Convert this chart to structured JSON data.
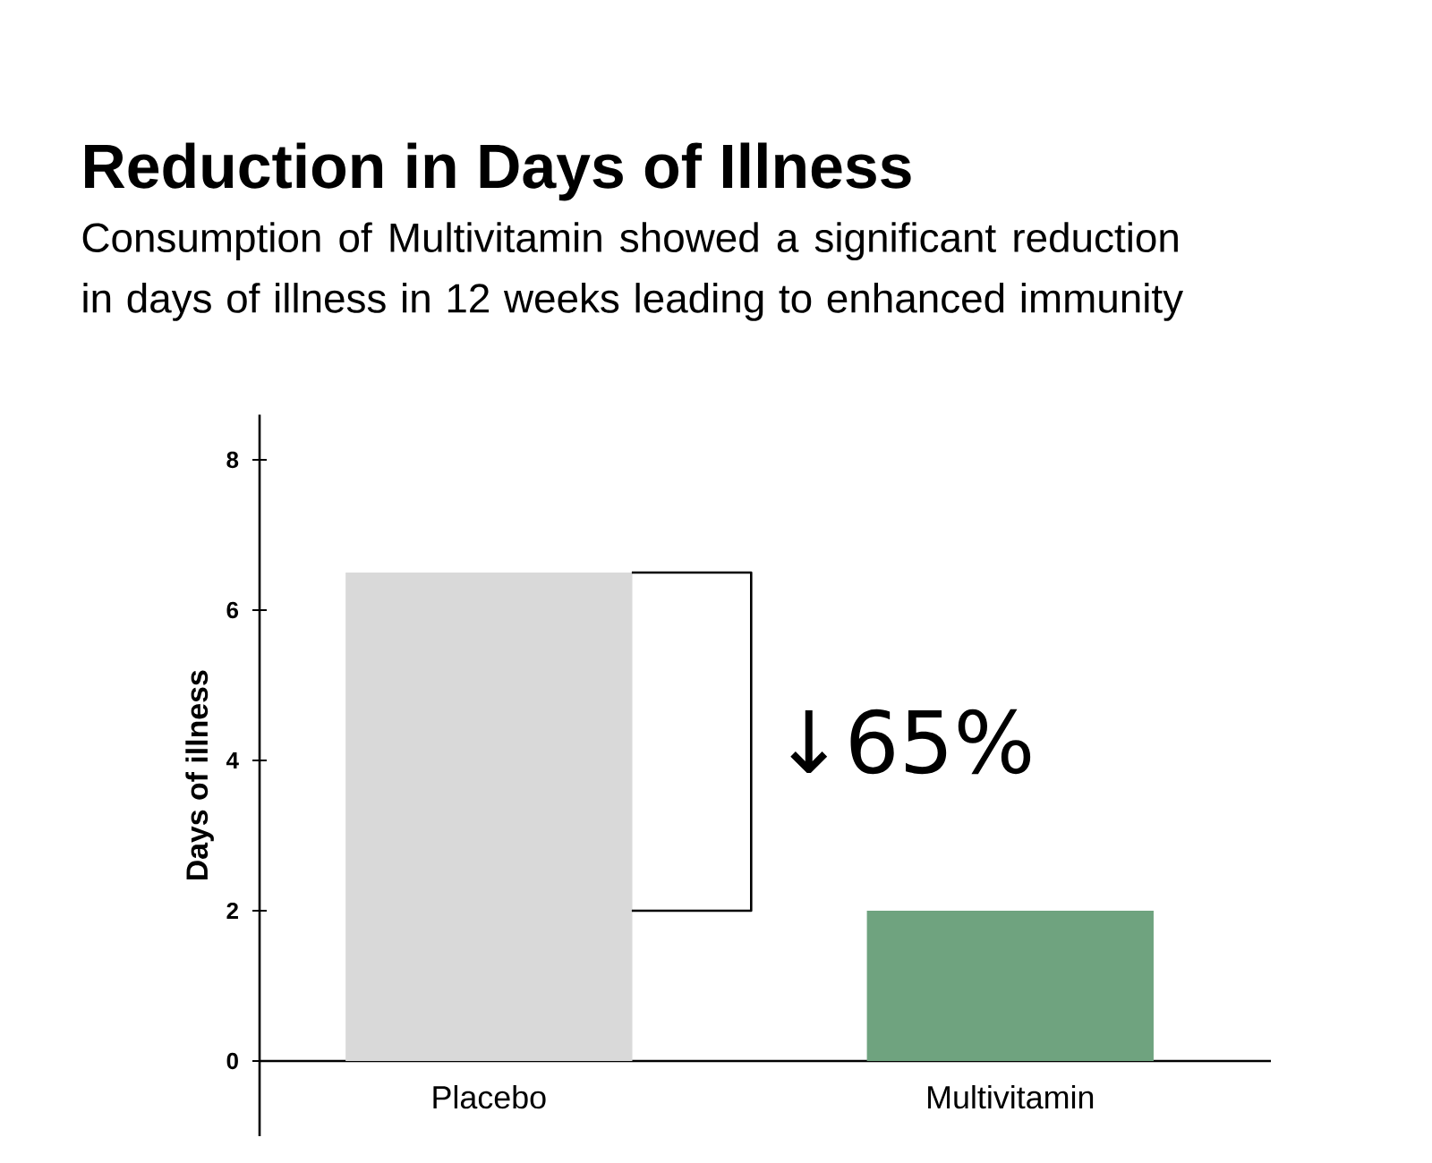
{
  "chart_data": {
    "type": "bar",
    "title": "Reduction in Days of Illness",
    "subtitle": "Consumption of Multivitamin showed a significant reduction in days of illness in 12 weeks leading to enhanced immunity",
    "ylabel": "Days of illness",
    "categories": [
      "Placebo",
      "Multivitamin"
    ],
    "values": [
      6.5,
      2
    ],
    "colors": [
      "#d9d9d9",
      "#6fa37f"
    ],
    "ylim": [
      -1,
      8.6
    ],
    "yticks": [
      0,
      2,
      4,
      6,
      8
    ],
    "annotations": [
      "↓65%"
    ]
  }
}
